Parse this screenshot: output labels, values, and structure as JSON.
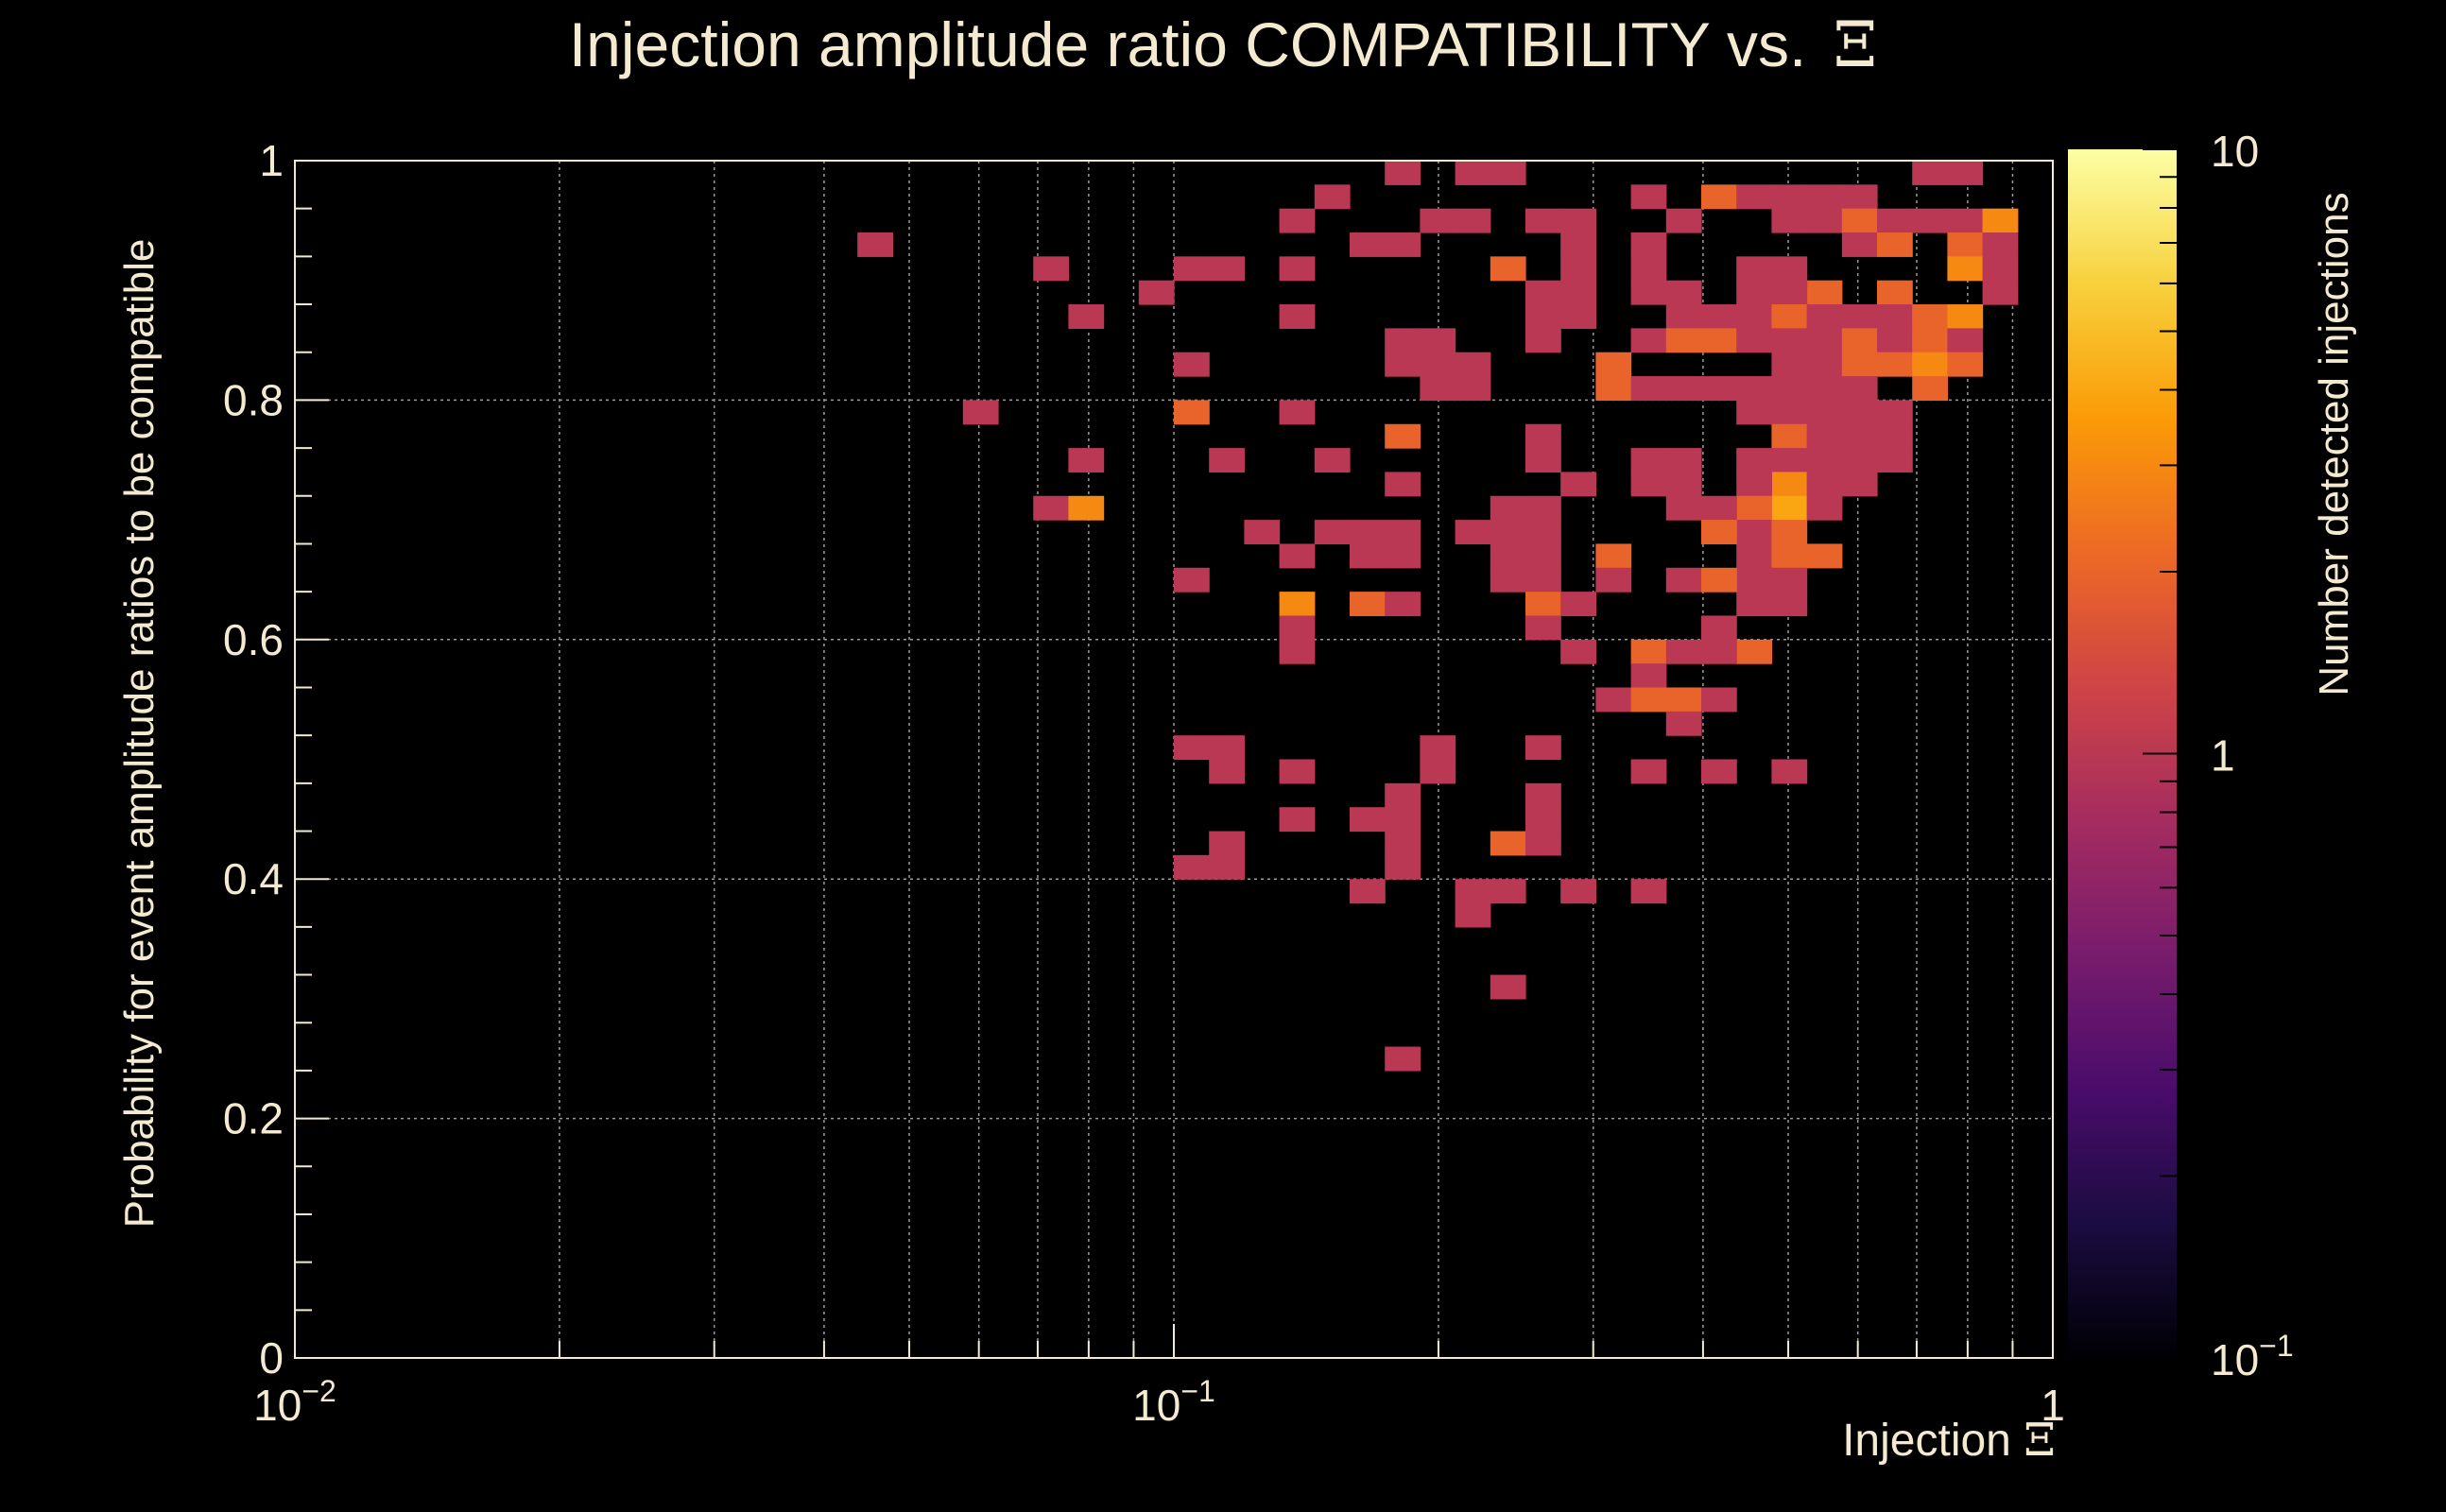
{
  "colors": {
    "background": "#000000",
    "text": "#f3ead0",
    "grid": "#9a9a9a",
    "frame": "#f3ead0",
    "colormap": [
      "#000004",
      "#1b0c41",
      "#4a0c6b",
      "#781c6d",
      "#a52c60",
      "#cf4446",
      "#ed6925",
      "#fb9b06",
      "#f7d13d",
      "#fcffa4"
    ]
  },
  "chart_data": {
    "type": "heatmap",
    "title": "Injection amplitude ratio COMPATIBILITY vs. ",
    "title_symbol": "Ξ",
    "xlabel": "Injection ",
    "xlabel_symbol": "Ξ",
    "ylabel": "Probability for event amplitude ratios to be compatible",
    "zlabel": "Number detected injections",
    "x_scale": "log",
    "xlim": [
      0.01,
      1
    ],
    "ylim": [
      0,
      1
    ],
    "z_scale": "log",
    "zlim": [
      0.1,
      10
    ],
    "grid": true,
    "x_tick_labels": [
      {
        "base": "10",
        "exp": "−2"
      },
      {
        "base": "10",
        "exp": "−1"
      },
      {
        "base": "1",
        "exp": ""
      }
    ],
    "y_tick_labels": [
      "0",
      "0.2",
      "0.4",
      "0.6",
      "0.8",
      "1"
    ],
    "z_tick_labels": [
      {
        "base": "10",
        "exp": "−1"
      },
      {
        "base": "1",
        "exp": ""
      },
      {
        "base": "10",
        "exp": ""
      }
    ],
    "bins": {
      "x_log_edges_from": -2,
      "x_log_edges_to": 0,
      "x_count": 50,
      "y_from": 0,
      "y_to": 1,
      "y_count": 50
    },
    "cells": [
      [
        0.047,
        0.935,
        1
      ],
      [
        0.071,
        0.915,
        1
      ],
      [
        0.082,
        0.875,
        1
      ],
      [
        0.092,
        0.895,
        1
      ],
      [
        0.103,
        0.915,
        1
      ],
      [
        0.118,
        0.915,
        1
      ],
      [
        0.135,
        0.955,
        1
      ],
      [
        0.148,
        0.975,
        1
      ],
      [
        0.135,
        0.915,
        1
      ],
      [
        0.135,
        0.875,
        1
      ],
      [
        0.168,
        0.935,
        1
      ],
      [
        0.185,
        0.995,
        1
      ],
      [
        0.185,
        0.935,
        1
      ],
      [
        0.225,
        0.995,
        1
      ],
      [
        0.245,
        0.995,
        1
      ],
      [
        0.225,
        0.955,
        1
      ],
      [
        0.265,
        0.955,
        1
      ],
      [
        0.205,
        0.955,
        1
      ],
      [
        0.245,
        0.915,
        2
      ],
      [
        0.265,
        0.895,
        1
      ],
      [
        0.295,
        0.955,
        1
      ],
      [
        0.335,
        0.975,
        1
      ],
      [
        0.375,
        0.955,
        1
      ],
      [
        0.415,
        0.975,
        2
      ],
      [
        0.455,
        0.975,
        1
      ],
      [
        0.5,
        0.975,
        1
      ],
      [
        0.55,
        0.975,
        1
      ],
      [
        0.6,
        0.975,
        1
      ],
      [
        0.5,
        0.955,
        1
      ],
      [
        0.55,
        0.955,
        1
      ],
      [
        0.6,
        0.955,
        2
      ],
      [
        0.66,
        0.955,
        1
      ],
      [
        0.72,
        0.955,
        1
      ],
      [
        0.8,
        0.955,
        1
      ],
      [
        0.88,
        0.955,
        3
      ],
      [
        0.72,
        0.995,
        1
      ],
      [
        0.8,
        0.995,
        1
      ],
      [
        0.6,
        0.935,
        1
      ],
      [
        0.66,
        0.935,
        2
      ],
      [
        0.8,
        0.935,
        2
      ],
      [
        0.88,
        0.935,
        1
      ],
      [
        0.295,
        0.935,
        1
      ],
      [
        0.335,
        0.935,
        1
      ],
      [
        0.295,
        0.915,
        1
      ],
      [
        0.335,
        0.915,
        1
      ],
      [
        0.455,
        0.915,
        1
      ],
      [
        0.5,
        0.915,
        1
      ],
      [
        0.8,
        0.915,
        3
      ],
      [
        0.88,
        0.915,
        1
      ],
      [
        0.55,
        0.895,
        2
      ],
      [
        0.66,
        0.895,
        2
      ],
      [
        0.455,
        0.895,
        1
      ],
      [
        0.5,
        0.895,
        1
      ],
      [
        0.88,
        0.895,
        1
      ],
      [
        0.365,
        0.895,
        1
      ],
      [
        0.295,
        0.895,
        1
      ],
      [
        0.335,
        0.895,
        1
      ],
      [
        0.415,
        0.875,
        1
      ],
      [
        0.455,
        0.875,
        1
      ],
      [
        0.5,
        0.875,
        2
      ],
      [
        0.55,
        0.875,
        1
      ],
      [
        0.6,
        0.875,
        1
      ],
      [
        0.66,
        0.875,
        1
      ],
      [
        0.72,
        0.875,
        2
      ],
      [
        0.8,
        0.875,
        3
      ],
      [
        0.265,
        0.875,
        1
      ],
      [
        0.295,
        0.875,
        1
      ],
      [
        0.365,
        0.875,
        1
      ],
      [
        0.415,
        0.855,
        2
      ],
      [
        0.455,
        0.855,
        1
      ],
      [
        0.5,
        0.855,
        1
      ],
      [
        0.55,
        0.855,
        1
      ],
      [
        0.6,
        0.855,
        2
      ],
      [
        0.66,
        0.855,
        1
      ],
      [
        0.72,
        0.855,
        2
      ],
      [
        0.8,
        0.855,
        1
      ],
      [
        0.335,
        0.855,
        1
      ],
      [
        0.375,
        0.855,
        2
      ],
      [
        0.265,
        0.855,
        1
      ],
      [
        0.185,
        0.855,
        1
      ],
      [
        0.205,
        0.855,
        1
      ],
      [
        0.5,
        0.835,
        1
      ],
      [
        0.55,
        0.835,
        1
      ],
      [
        0.6,
        0.835,
        2
      ],
      [
        0.66,
        0.835,
        2
      ],
      [
        0.72,
        0.835,
        3
      ],
      [
        0.8,
        0.835,
        2
      ],
      [
        0.185,
        0.835,
        1
      ],
      [
        0.205,
        0.835,
        1
      ],
      [
        0.225,
        0.835,
        1
      ],
      [
        0.103,
        0.835,
        1
      ],
      [
        0.325,
        0.835,
        2
      ],
      [
        0.325,
        0.815,
        2
      ],
      [
        0.345,
        0.815,
        1
      ],
      [
        0.375,
        0.815,
        1
      ],
      [
        0.415,
        0.815,
        1
      ],
      [
        0.455,
        0.815,
        1
      ],
      [
        0.5,
        0.815,
        1
      ],
      [
        0.55,
        0.815,
        1
      ],
      [
        0.6,
        0.815,
        1
      ],
      [
        0.72,
        0.815,
        2
      ],
      [
        0.225,
        0.815,
        1
      ],
      [
        0.205,
        0.815,
        1
      ],
      [
        0.5,
        0.795,
        1
      ],
      [
        0.55,
        0.795,
        1
      ],
      [
        0.6,
        0.795,
        1
      ],
      [
        0.66,
        0.795,
        1
      ],
      [
        0.103,
        0.795,
        2
      ],
      [
        0.135,
        0.795,
        1
      ],
      [
        0.063,
        0.795,
        1
      ],
      [
        0.46,
        0.795,
        1
      ],
      [
        0.5,
        0.775,
        2
      ],
      [
        0.55,
        0.775,
        1
      ],
      [
        0.6,
        0.775,
        1
      ],
      [
        0.66,
        0.775,
        1
      ],
      [
        0.185,
        0.775,
        2
      ],
      [
        0.265,
        0.775,
        1
      ],
      [
        0.5,
        0.755,
        1
      ],
      [
        0.55,
        0.755,
        1
      ],
      [
        0.6,
        0.755,
        1
      ],
      [
        0.66,
        0.755,
        1
      ],
      [
        0.265,
        0.755,
        1
      ],
      [
        0.335,
        0.755,
        1
      ],
      [
        0.375,
        0.755,
        1
      ],
      [
        0.46,
        0.755,
        1
      ],
      [
        0.082,
        0.755,
        1
      ],
      [
        0.118,
        0.755,
        1
      ],
      [
        0.148,
        0.755,
        1
      ],
      [
        0.5,
        0.735,
        3
      ],
      [
        0.55,
        0.735,
        1
      ],
      [
        0.6,
        0.735,
        1
      ],
      [
        0.185,
        0.735,
        1
      ],
      [
        0.295,
        0.735,
        1
      ],
      [
        0.335,
        0.735,
        1
      ],
      [
        0.375,
        0.735,
        1
      ],
      [
        0.46,
        0.735,
        1
      ],
      [
        0.5,
        0.715,
        4
      ],
      [
        0.55,
        0.715,
        1
      ],
      [
        0.46,
        0.715,
        2
      ],
      [
        0.415,
        0.715,
        1
      ],
      [
        0.375,
        0.715,
        1
      ],
      [
        0.265,
        0.715,
        1
      ],
      [
        0.245,
        0.715,
        1
      ],
      [
        0.072,
        0.715,
        1
      ],
      [
        0.082,
        0.715,
        3
      ],
      [
        0.46,
        0.695,
        1
      ],
      [
        0.5,
        0.695,
        2
      ],
      [
        0.415,
        0.695,
        2
      ],
      [
        0.265,
        0.695,
        1
      ],
      [
        0.225,
        0.695,
        1
      ],
      [
        0.245,
        0.695,
        1
      ],
      [
        0.168,
        0.695,
        1
      ],
      [
        0.185,
        0.695,
        1
      ],
      [
        0.148,
        0.695,
        1
      ],
      [
        0.125,
        0.695,
        1
      ],
      [
        0.46,
        0.675,
        1
      ],
      [
        0.5,
        0.675,
        2
      ],
      [
        0.55,
        0.675,
        2
      ],
      [
        0.265,
        0.675,
        1
      ],
      [
        0.325,
        0.675,
        2
      ],
      [
        0.168,
        0.675,
        1
      ],
      [
        0.185,
        0.675,
        1
      ],
      [
        0.135,
        0.675,
        1
      ],
      [
        0.245,
        0.675,
        1
      ],
      [
        0.46,
        0.655,
        1
      ],
      [
        0.5,
        0.655,
        1
      ],
      [
        0.325,
        0.655,
        1
      ],
      [
        0.375,
        0.655,
        1
      ],
      [
        0.415,
        0.655,
        2
      ],
      [
        0.245,
        0.655,
        1
      ],
      [
        0.265,
        0.655,
        1
      ],
      [
        0.103,
        0.655,
        1
      ],
      [
        0.5,
        0.635,
        1
      ],
      [
        0.46,
        0.635,
        1
      ],
      [
        0.135,
        0.635,
        3
      ],
      [
        0.16,
        0.635,
        2
      ],
      [
        0.185,
        0.635,
        1
      ],
      [
        0.265,
        0.635,
        2
      ],
      [
        0.295,
        0.635,
        1
      ],
      [
        0.265,
        0.615,
        1
      ],
      [
        0.135,
        0.615,
        1
      ],
      [
        0.415,
        0.615,
        1
      ],
      [
        0.335,
        0.595,
        2
      ],
      [
        0.375,
        0.595,
        1
      ],
      [
        0.46,
        0.595,
        2
      ],
      [
        0.415,
        0.595,
        1
      ],
      [
        0.295,
        0.595,
        1
      ],
      [
        0.135,
        0.595,
        1
      ],
      [
        0.335,
        0.575,
        1
      ],
      [
        0.315,
        0.555,
        1
      ],
      [
        0.345,
        0.555,
        2
      ],
      [
        0.375,
        0.555,
        2
      ],
      [
        0.415,
        0.555,
        1
      ],
      [
        0.375,
        0.535,
        1
      ],
      [
        0.103,
        0.515,
        1
      ],
      [
        0.118,
        0.515,
        1
      ],
      [
        0.205,
        0.515,
        1
      ],
      [
        0.265,
        0.515,
        1
      ],
      [
        0.118,
        0.495,
        1
      ],
      [
        0.135,
        0.495,
        1
      ],
      [
        0.205,
        0.495,
        1
      ],
      [
        0.335,
        0.495,
        1
      ],
      [
        0.415,
        0.495,
        1
      ],
      [
        0.5,
        0.495,
        1
      ],
      [
        0.185,
        0.475,
        1
      ],
      [
        0.265,
        0.475,
        1
      ],
      [
        0.135,
        0.455,
        1
      ],
      [
        0.168,
        0.455,
        1
      ],
      [
        0.185,
        0.455,
        1
      ],
      [
        0.265,
        0.455,
        1
      ],
      [
        0.118,
        0.435,
        1
      ],
      [
        0.185,
        0.435,
        1
      ],
      [
        0.245,
        0.435,
        2
      ],
      [
        0.265,
        0.435,
        1
      ],
      [
        0.103,
        0.415,
        1
      ],
      [
        0.118,
        0.415,
        1
      ],
      [
        0.185,
        0.415,
        1
      ],
      [
        0.168,
        0.395,
        1
      ],
      [
        0.225,
        0.395,
        1
      ],
      [
        0.245,
        0.395,
        1
      ],
      [
        0.295,
        0.395,
        1
      ],
      [
        0.335,
        0.395,
        1
      ],
      [
        0.225,
        0.375,
        1
      ],
      [
        0.245,
        0.315,
        1
      ],
      [
        0.185,
        0.255,
        1
      ]
    ]
  }
}
